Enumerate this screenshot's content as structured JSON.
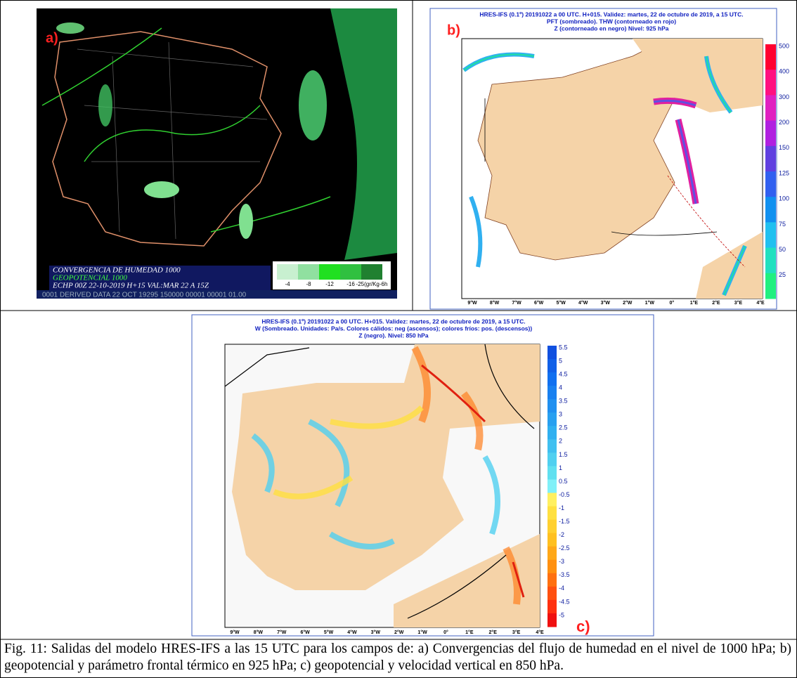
{
  "panels": [
    {
      "label": "a)",
      "legend_lines": [
        "CONVERGENCIA DE HUMEDAD 1000",
        "GEOPOTENCIAL 1000",
        "ECHP 00Z 22-10-2019 H+15 VAL:MAR 22 A 15Z"
      ],
      "footer": "0001 DERIVED DATA  22 OCT 19295 150000 00001 00001 01.00",
      "scale_labels": [
        "-4",
        "-8",
        "-12",
        "-16",
        "-25(gr/Kg-6h"
      ],
      "scale_colors": [
        "#c8f0d0",
        "#90e0a0",
        "#20e020",
        "#30c040",
        "#208030"
      ]
    },
    {
      "label": "b)",
      "title_lines": [
        "HRES-IFS (0.1º) 20191022 a 00 UTC.  H+015. Validez: martes, 22 de octubre de 2019,  a  15 UTC.",
        "PFT (sombreado).     THW (contorneado en rojo)",
        "Z (contorneado en negro) Nivel: 925 hPa"
      ],
      "colorbar": [
        500,
        400,
        300,
        200,
        150,
        125,
        100,
        75,
        50,
        25
      ],
      "colorbar_colors": [
        "#ff0030",
        "#ff1080",
        "#e020c0",
        "#b020e0",
        "#6040e0",
        "#3060f0",
        "#1090f0",
        "#20c0f0",
        "#20e0c0",
        "#20f080"
      ],
      "lon_labels": [
        "9°W",
        "8°W",
        "7°W",
        "6°W",
        "5°W",
        "4°W",
        "3°W",
        "2°W",
        "1°W",
        "0°",
        "1°E",
        "2°E",
        "3°E",
        "4°E"
      ]
    },
    {
      "label": "c)",
      "title_lines": [
        "HRES-IFS (0.1º) 20191022 a 00 UTC.  H+015. Validez: martes, 22 de octubre de 2019,  a  15 UTC.",
        "W (Sombreado. Unidades: Pa/s. Colores cálidos: neg (ascensos);  colores fríos: pos. (descensos))",
        "Z (negro).  Nivel:  850 hPa"
      ],
      "colorbar": [
        5.5,
        5,
        4.5,
        4,
        3.5,
        3,
        2.5,
        2,
        1.5,
        1,
        0.5,
        -0.5,
        -1,
        -1.5,
        -2,
        -2.5,
        -3,
        -3.5,
        -4,
        -4.5,
        -5
      ],
      "colorbar_colors": [
        "#1050e0",
        "#1060e8",
        "#1070f0",
        "#1880f0",
        "#2090f0",
        "#28a0f0",
        "#30b0f0",
        "#40c0f0",
        "#50d0f0",
        "#60e0f0",
        "#80f0f8",
        "#fff060",
        "#ffe040",
        "#ffd030",
        "#ffc020",
        "#ffa818",
        "#ff9010",
        "#ff7010",
        "#ff5010",
        "#ff3010",
        "#f01010"
      ],
      "lon_labels": [
        "9°W",
        "8°W",
        "7°W",
        "6°W",
        "5°W",
        "4°W",
        "3°W",
        "2°W",
        "1°W",
        "0°",
        "1°E",
        "2°E",
        "3°E",
        "4°E"
      ]
    }
  ],
  "caption": "Fig. 11: Salidas del modelo HRES-IFS a las 15 UTC para los campos de: a) Convergencias del flujo de humedad en el nivel de 1000 hPa; b) geopotencial y parámetro frontal térmico en 925 hPa; c) geopotencial y velocidad vertical en 850 hPa."
}
